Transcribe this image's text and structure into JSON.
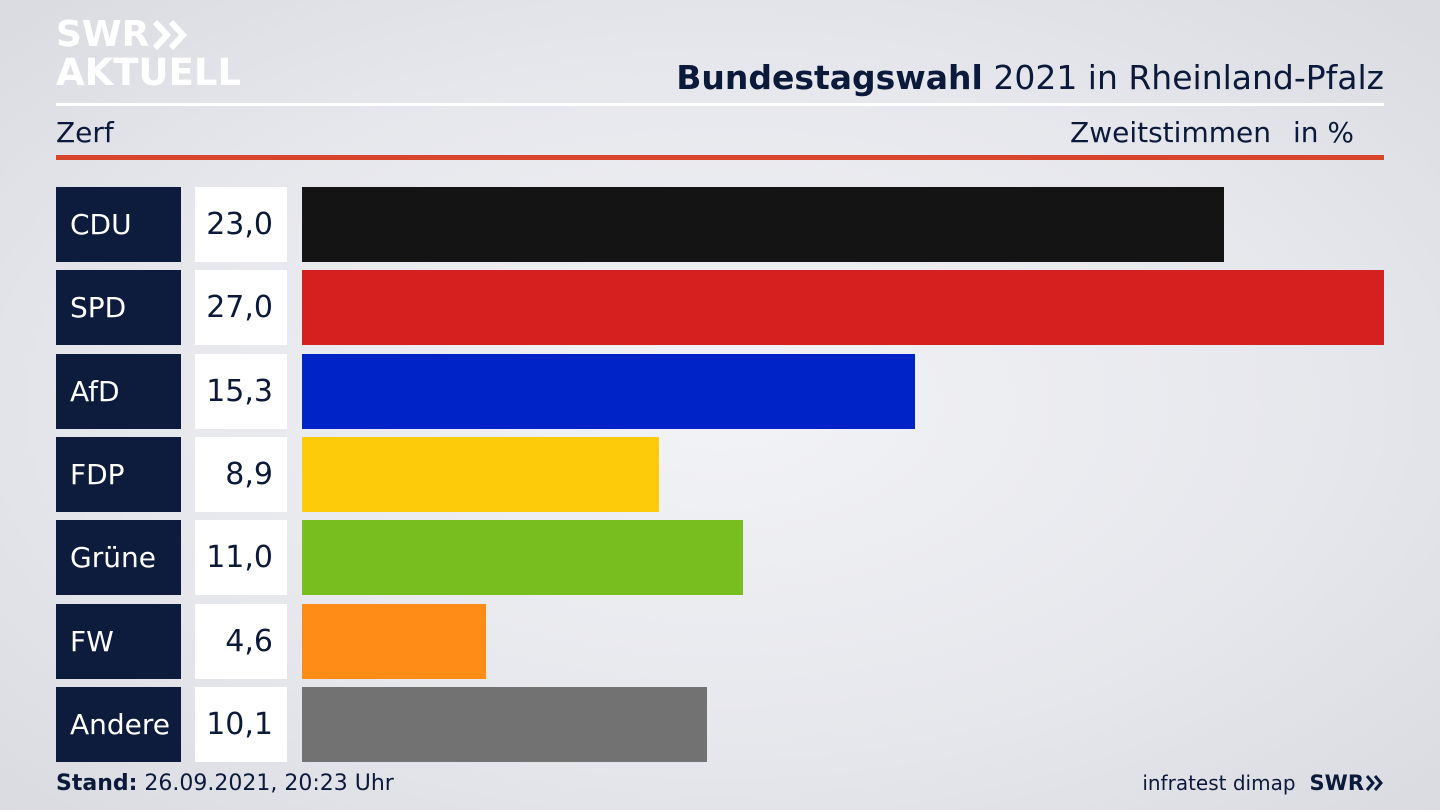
{
  "logo": {
    "line1": "SWR",
    "line2": "AKTUELL",
    "arrow_icon": "double-chevron-right-icon"
  },
  "header": {
    "title_bold": "Bundestagswahl",
    "title_rest": " 2021 in Rheinland-Pfalz",
    "region": "Zerf",
    "metric": "Zweitstimmen",
    "unit": "in %"
  },
  "chart_data": {
    "type": "bar",
    "orientation": "horizontal",
    "categories": [
      "CDU",
      "SPD",
      "AfD",
      "FDP",
      "Grüne",
      "FW",
      "Andere"
    ],
    "values": [
      23.0,
      27.0,
      15.3,
      8.9,
      11.0,
      4.6,
      10.1
    ],
    "value_labels": [
      "23,0",
      "27,0",
      "15,3",
      "8,9",
      "11,0",
      "4,6",
      "10,1"
    ],
    "colors": [
      "#141414",
      "#d62020",
      "#0023c8",
      "#fdcb0a",
      "#78be1e",
      "#ff8c17",
      "#727272"
    ],
    "title": "Bundestagswahl 2021 in Rheinland-Pfalz",
    "xlim": [
      0,
      27.0
    ]
  },
  "footer": {
    "stand_label": "Stand:",
    "stand_value": " 26.09.2021, 20:23 Uhr",
    "source": "infratest dimap",
    "brand": "SWR"
  }
}
